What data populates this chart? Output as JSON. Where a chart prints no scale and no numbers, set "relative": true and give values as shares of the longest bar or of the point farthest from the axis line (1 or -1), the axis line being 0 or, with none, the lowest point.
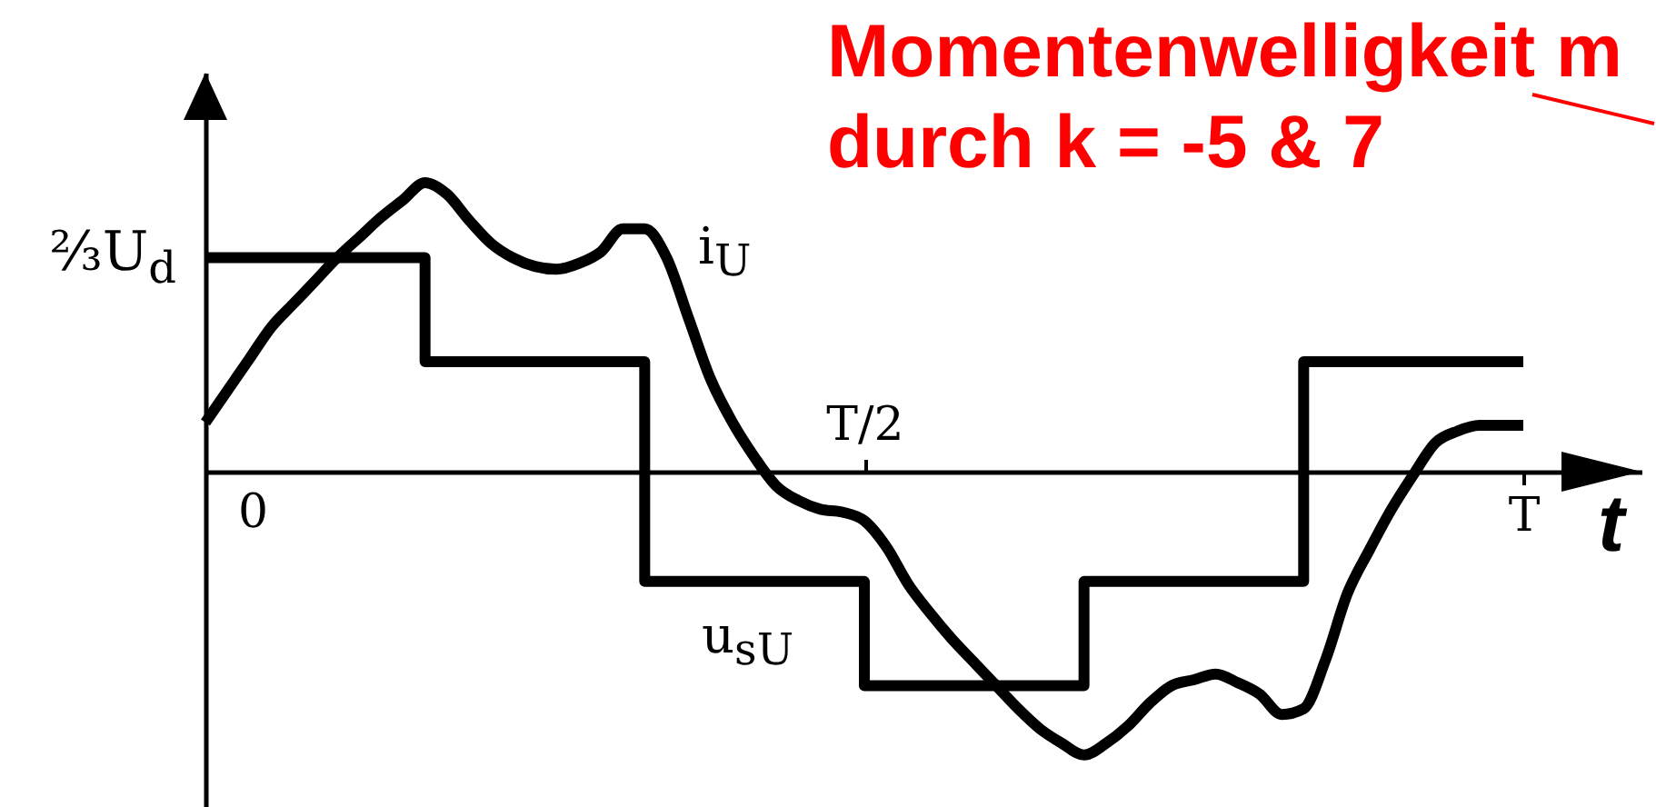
{
  "chart_data": {
    "type": "line",
    "relative": true,
    "annotations": [
      "Momentenwelligkeit m",
      "durch k = -5 & 7",
      "⅔U$_{d}$",
      "0"
    ],
    "xlabel": "t",
    "categories": [
      null,
      null,
      null,
      null,
      null,
      null,
      null,
      null,
      null,
      null,
      null,
      null,
      null,
      null,
      null,
      null,
      null,
      null,
      null,
      null,
      null,
      null,
      null,
      null,
      null,
      null,
      null,
      null,
      null,
      null,
      "T/2",
      null,
      null,
      null,
      null,
      null,
      null,
      null,
      null,
      null,
      null,
      null,
      null,
      null,
      null,
      null,
      null,
      null,
      null,
      null,
      null,
      null,
      null,
      null,
      null,
      null,
      null,
      null,
      null,
      null,
      "T"
    ],
    "series": [
      {
        "name": "u$_{sU}$",
        "type": "step",
        "color": "#000000",
        "values": [
          0.74,
          0.74,
          0.74,
          0.74,
          0.74,
          0.74,
          0.74,
          0.74,
          0.74,
          0.74,
          0.38,
          0.38,
          0.38,
          0.38,
          0.38,
          0.38,
          0.38,
          0.38,
          0.38,
          0.38,
          -0.38,
          -0.38,
          -0.38,
          -0.38,
          -0.38,
          -0.38,
          -0.38,
          -0.38,
          -0.38,
          -0.38,
          -0.74,
          -0.74,
          -0.74,
          -0.74,
          -0.74,
          -0.74,
          -0.74,
          -0.74,
          -0.74,
          -0.74,
          -0.38,
          -0.38,
          -0.38,
          -0.38,
          -0.38,
          -0.38,
          -0.38,
          -0.38,
          -0.38,
          -0.38,
          0.38,
          0.38,
          0.38,
          0.38,
          0.38,
          0.38,
          0.38,
          0.38,
          0.38,
          0.38,
          0.38
        ]
      },
      {
        "name": "i$_{U}$",
        "type": "line",
        "color": "#000000",
        "values": [
          0.17,
          0.28,
          0.39,
          0.5,
          0.58,
          0.66,
          0.74,
          0.81,
          0.88,
          0.94,
          1,
          0.96,
          0.87,
          0.79,
          0.74,
          0.71,
          0.7,
          0.72,
          0.76,
          0.84,
          0.84,
          0.74,
          0.53,
          0.32,
          0.17,
          0.05,
          -0.05,
          -0.1,
          -0.13,
          -0.14,
          -0.17,
          -0.26,
          -0.39,
          -0.49,
          -0.58,
          -0.66,
          -0.74,
          -0.82,
          -0.89,
          -0.94,
          -0.98,
          -0.94,
          -0.88,
          -0.8,
          -0.74,
          -0.72,
          -0.7,
          -0.73,
          -0.77,
          -0.84,
          -0.82,
          -0.65,
          -0.42,
          -0.27,
          -0.13,
          -0.01,
          0.1,
          0.14,
          0.16,
          0.16,
          0.16
        ]
      }
    ]
  }
}
